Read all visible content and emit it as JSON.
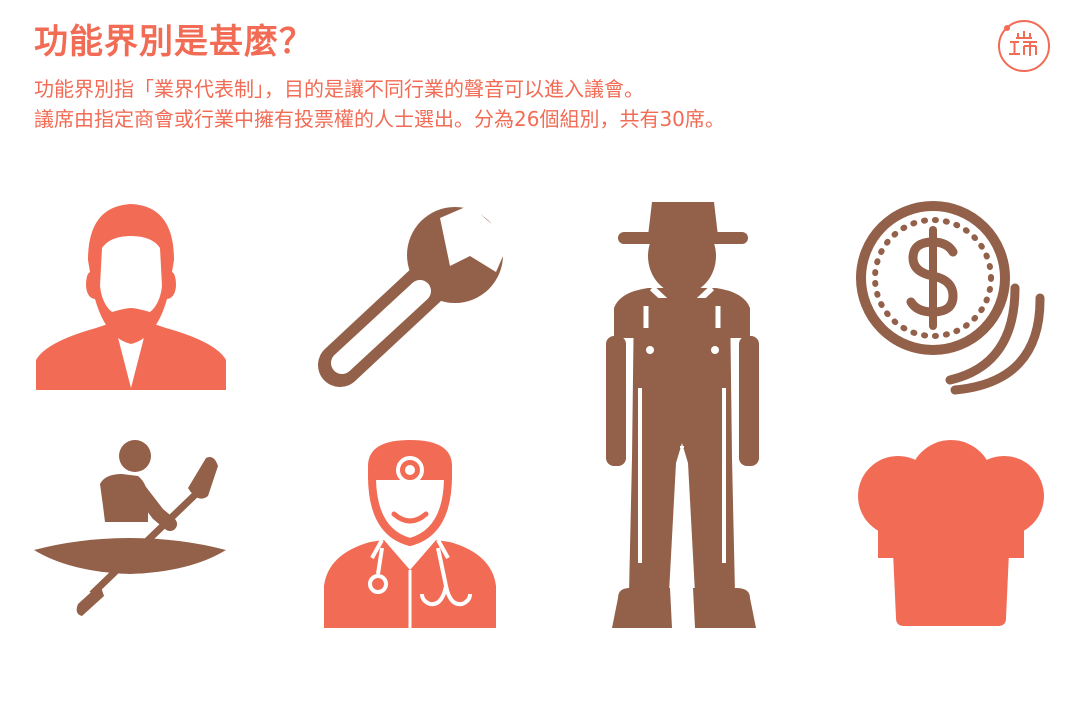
{
  "header": {
    "title": "功能界別是甚麼？",
    "description_lines": [
      "功能界別指「業界代表制」，目的是讓不同行業的聲音可以進入議會。",
      "議席由指定商會或行業中擁有投票權的人士選出。分為26個組別，共有30席。"
    ]
  },
  "logo": {
    "icon": "initium-logo-icon",
    "color": "#f26b55"
  },
  "colors": {
    "coral": "#f26b55",
    "brown": "#93604a",
    "white": "#ffffff"
  },
  "icons": [
    {
      "name": "businessman-icon",
      "color": "#f26b55"
    },
    {
      "name": "wrench-icon",
      "color": "#93604a"
    },
    {
      "name": "farmer-icon",
      "color": "#93604a"
    },
    {
      "name": "coin-icon",
      "color": "#93604a"
    },
    {
      "name": "rower-icon",
      "color": "#93604a"
    },
    {
      "name": "doctor-icon",
      "color": "#f26b55"
    },
    {
      "name": "chef-hat-icon",
      "color": "#f26b55"
    }
  ]
}
